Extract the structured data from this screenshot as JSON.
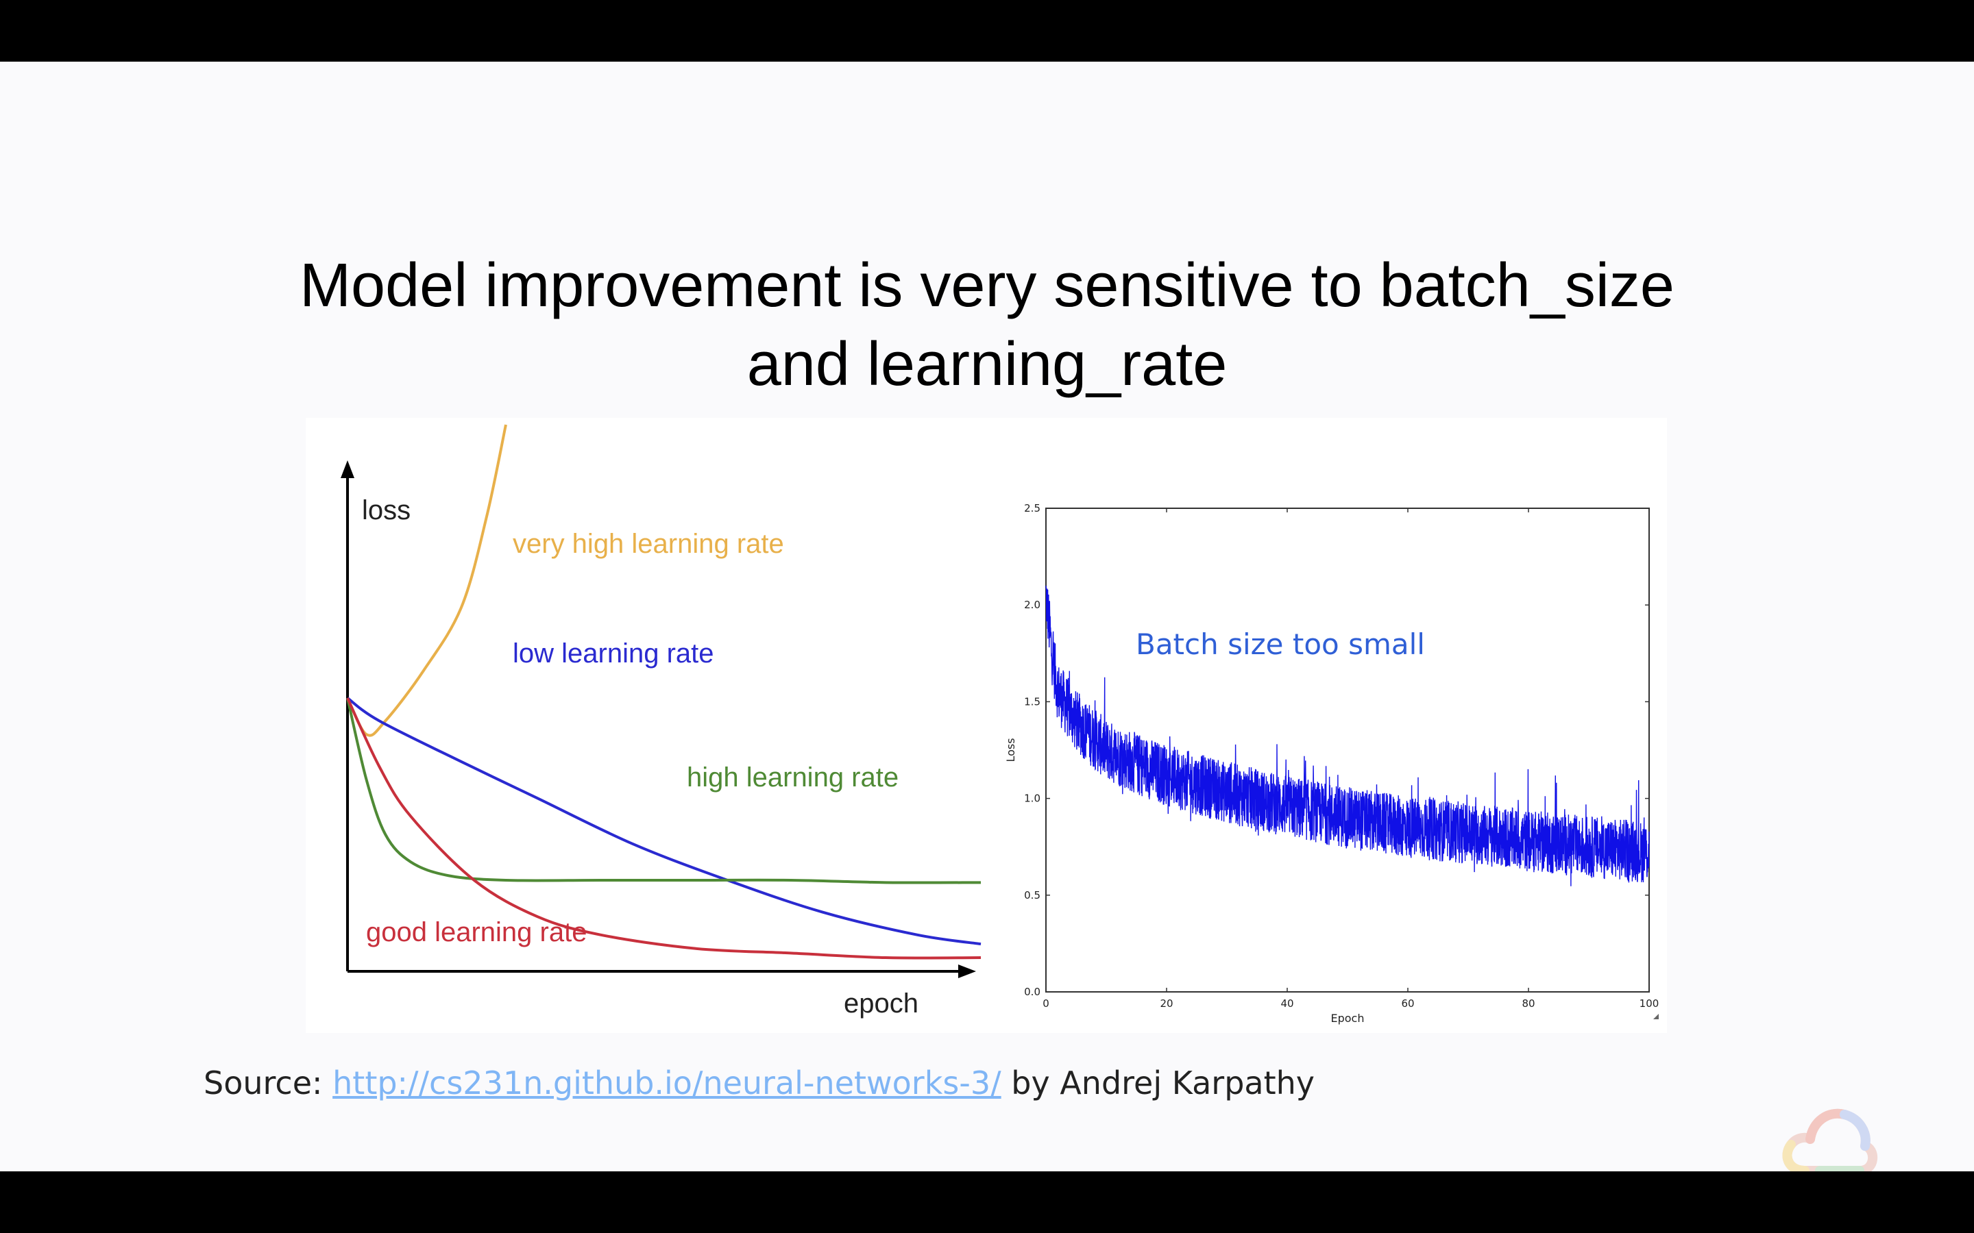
{
  "slide": {
    "title_line1": "Model improvement is very sensitive to batch_size",
    "title_line2": "and learning_rate",
    "source_prefix": "Source: ",
    "source_link": "http://cs231n.github.io/neural-networks-3/",
    "source_suffix": " by Andrej Karpathy"
  },
  "colors": {
    "very_high": "#e8b04a",
    "low": "#2a2ad0",
    "high": "#4f8a35",
    "good": "#c8303c",
    "batch": "#1010e6",
    "annotation": "#2f5fd6"
  },
  "chart_data": [
    {
      "type": "line",
      "ylabel": "loss",
      "xlabel": "epoch",
      "series": [
        {
          "name": "very high learning rate",
          "color_key": "very_high",
          "x": [
            0,
            0.03,
            0.06,
            0.12,
            0.18,
            0.22,
            0.25
          ],
          "y": [
            0.6,
            0.52,
            0.55,
            0.66,
            0.8,
            1.0,
            1.2
          ]
        },
        {
          "name": "low learning rate",
          "color_key": "low",
          "x": [
            0,
            0.05,
            0.18,
            0.3,
            0.45,
            0.6,
            0.75,
            0.9,
            1.0
          ],
          "y": [
            0.6,
            0.55,
            0.46,
            0.38,
            0.28,
            0.2,
            0.13,
            0.08,
            0.06
          ]
        },
        {
          "name": "high learning rate",
          "color_key": "high",
          "x": [
            0,
            0.03,
            0.06,
            0.1,
            0.16,
            0.25,
            0.4,
            0.55,
            0.7,
            0.85,
            1.0
          ],
          "y": [
            0.6,
            0.42,
            0.3,
            0.24,
            0.21,
            0.2,
            0.2,
            0.2,
            0.2,
            0.195,
            0.195
          ]
        },
        {
          "name": "good learning rate",
          "color_key": "good",
          "x": [
            0,
            0.05,
            0.1,
            0.2,
            0.3,
            0.4,
            0.55,
            0.7,
            0.85,
            1.0
          ],
          "y": [
            0.6,
            0.45,
            0.34,
            0.2,
            0.12,
            0.08,
            0.05,
            0.04,
            0.03,
            0.03
          ]
        }
      ]
    },
    {
      "type": "line",
      "annotation": "Batch size too small",
      "xlabel": "Epoch",
      "ylabel": "Loss",
      "xlim": [
        0,
        100
      ],
      "ylim": [
        0.0,
        2.5
      ],
      "xticks": [
        "0",
        "20",
        "40",
        "60",
        "80",
        "100"
      ],
      "yticks": [
        "0.0",
        "0.5",
        "1.0",
        "1.5",
        "2.0",
        "2.5"
      ],
      "series": [
        {
          "name": "",
          "color_key": "batch",
          "x": [
            0,
            1,
            2,
            5,
            10,
            15,
            20,
            30,
            40,
            50,
            60,
            70,
            80,
            90,
            100
          ],
          "y": [
            2.05,
            1.75,
            1.55,
            1.4,
            1.25,
            1.18,
            1.12,
            1.03,
            0.96,
            0.9,
            0.85,
            0.82,
            0.78,
            0.75,
            0.72
          ],
          "noise": 0.16
        }
      ]
    }
  ]
}
